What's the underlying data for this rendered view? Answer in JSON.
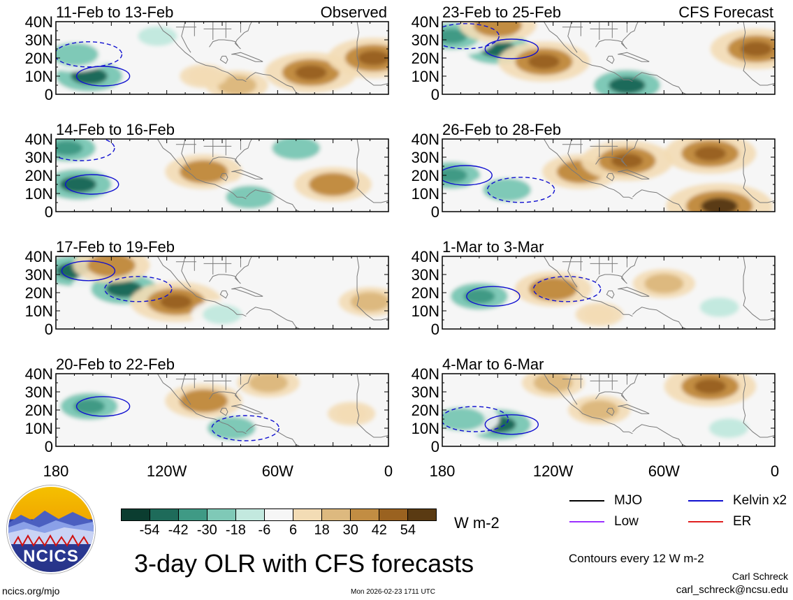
{
  "chart_data": [
    {
      "type": "map",
      "title": "11-Feb to 13-Feb",
      "subtitle": "Observed",
      "x_range_deg_west": [
        180,
        0
      ],
      "y_range_deg_north": [
        0,
        40
      ],
      "olr_anomalies": [
        {
          "lon_w": 162,
          "lat_n": 10,
          "value": -54
        },
        {
          "lon_w": 170,
          "lat_n": 22,
          "value": -30
        },
        {
          "lon_w": 125,
          "lat_n": 32,
          "value": -18
        },
        {
          "lon_w": 42,
          "lat_n": 12,
          "value": 42
        },
        {
          "lon_w": 8,
          "lat_n": 20,
          "value": 42
        },
        {
          "lon_w": 82,
          "lat_n": 5,
          "value": 18
        },
        {
          "lon_w": 100,
          "lat_n": 10,
          "value": 6
        }
      ]
    },
    {
      "type": "map",
      "title": "14-Feb to 16-Feb",
      "subtitle": "",
      "x_range_deg_west": [
        180,
        0
      ],
      "y_range_deg_north": [
        0,
        40
      ],
      "olr_anomalies": [
        {
          "lon_w": 168,
          "lat_n": 15,
          "value": -54
        },
        {
          "lon_w": 174,
          "lat_n": 35,
          "value": -42
        },
        {
          "lon_w": 50,
          "lat_n": 35,
          "value": -30
        },
        {
          "lon_w": 100,
          "lat_n": 22,
          "value": 30
        },
        {
          "lon_w": 75,
          "lat_n": 8,
          "value": -30
        },
        {
          "lon_w": 30,
          "lat_n": 15,
          "value": 30
        }
      ]
    },
    {
      "type": "map",
      "title": "17-Feb to 19-Feb",
      "subtitle": "",
      "x_range_deg_west": [
        180,
        0
      ],
      "y_range_deg_north": [
        0,
        40
      ],
      "olr_anomalies": [
        {
          "lon_w": 170,
          "lat_n": 32,
          "value": -54
        },
        {
          "lon_w": 143,
          "lat_n": 22,
          "value": -54
        },
        {
          "lon_w": 115,
          "lat_n": 15,
          "value": 42
        },
        {
          "lon_w": 150,
          "lat_n": 35,
          "value": 30
        },
        {
          "lon_w": 90,
          "lat_n": 8,
          "value": -18
        },
        {
          "lon_w": 10,
          "lat_n": 15,
          "value": 18
        }
      ]
    },
    {
      "type": "map",
      "title": "20-Feb to 22-Feb",
      "subtitle": "",
      "x_range_deg_west": [
        180,
        0
      ],
      "y_range_deg_north": [
        0,
        40
      ],
      "olr_anomalies": [
        {
          "lon_w": 162,
          "lat_n": 22,
          "value": -42
        },
        {
          "lon_w": 85,
          "lat_n": 10,
          "value": -30
        },
        {
          "lon_w": 65,
          "lat_n": 35,
          "value": 18
        },
        {
          "lon_w": 100,
          "lat_n": 25,
          "value": 30
        },
        {
          "lon_w": 20,
          "lat_n": 18,
          "value": 6
        }
      ]
    },
    {
      "type": "map",
      "title": "23-Feb to 25-Feb",
      "subtitle": "CFS Forecast",
      "x_range_deg_west": [
        180,
        0
      ],
      "y_range_deg_north": [
        0,
        40
      ],
      "olr_anomalies": [
        {
          "lon_w": 150,
          "lat_n": 25,
          "value": -54
        },
        {
          "lon_w": 175,
          "lat_n": 32,
          "value": -42
        },
        {
          "lon_w": 80,
          "lat_n": 5,
          "value": -54
        },
        {
          "lon_w": 125,
          "lat_n": 18,
          "value": 42
        },
        {
          "lon_w": 10,
          "lat_n": 25,
          "value": 42
        },
        {
          "lon_w": 150,
          "lat_n": 38,
          "value": 30
        }
      ]
    },
    {
      "type": "map",
      "title": "26-Feb to 28-Feb",
      "subtitle": "",
      "x_range_deg_west": [
        180,
        0
      ],
      "y_range_deg_north": [
        0,
        40
      ],
      "olr_anomalies": [
        {
          "lon_w": 175,
          "lat_n": 20,
          "value": -42
        },
        {
          "lon_w": 145,
          "lat_n": 12,
          "value": -30
        },
        {
          "lon_w": 105,
          "lat_n": 22,
          "value": 30
        },
        {
          "lon_w": 80,
          "lat_n": 28,
          "value": 42
        },
        {
          "lon_w": 30,
          "lat_n": 3,
          "value": 54
        },
        {
          "lon_w": 35,
          "lat_n": 32,
          "value": 42
        }
      ]
    },
    {
      "type": "map",
      "title": "1-Mar to 3-Mar",
      "subtitle": "",
      "x_range_deg_west": [
        180,
        0
      ],
      "y_range_deg_north": [
        0,
        40
      ],
      "olr_anomalies": [
        {
          "lon_w": 160,
          "lat_n": 18,
          "value": -42
        },
        {
          "lon_w": 120,
          "lat_n": 22,
          "value": 30
        },
        {
          "lon_w": 60,
          "lat_n": 25,
          "value": 18
        },
        {
          "lon_w": 30,
          "lat_n": 12,
          "value": -18
        },
        {
          "lon_w": 95,
          "lat_n": 8,
          "value": 6
        }
      ]
    },
    {
      "type": "map",
      "title": "4-Mar to 6-Mar",
      "subtitle": "",
      "x_range_deg_west": [
        180,
        0
      ],
      "y_range_deg_north": [
        0,
        40
      ],
      "olr_anomalies": [
        {
          "lon_w": 150,
          "lat_n": 12,
          "value": -54
        },
        {
          "lon_w": 170,
          "lat_n": 15,
          "value": -30
        },
        {
          "lon_w": 95,
          "lat_n": 20,
          "value": 18
        },
        {
          "lon_w": 35,
          "lat_n": 33,
          "value": 42
        },
        {
          "lon_w": 25,
          "lat_n": 10,
          "value": -18
        },
        {
          "lon_w": 120,
          "lat_n": 35,
          "value": 18
        }
      ]
    }
  ],
  "axes": {
    "y_ticks": [
      "40N",
      "30N",
      "20N",
      "10N",
      "0"
    ],
    "x_ticks": [
      "180",
      "120W",
      "60W",
      "0"
    ]
  },
  "colorbar": {
    "levels": [
      -54,
      -42,
      -30,
      -18,
      -6,
      6,
      18,
      30,
      42,
      54
    ],
    "tick_labels": [
      "-54",
      "-42",
      "-30",
      "-18",
      "-6",
      "6",
      "18",
      "30",
      "42",
      "54"
    ],
    "colors": [
      "#0b3d30",
      "#1e6b5a",
      "#3f9a85",
      "#7fc9b7",
      "#c3e9df",
      "#f6f6f6",
      "#f3dcb5",
      "#ddb97f",
      "#c28d43",
      "#9a6220",
      "#5a3a12"
    ],
    "units": "W m-2"
  },
  "legend": [
    {
      "label": "MJO",
      "color": "#000000"
    },
    {
      "label": "Kelvin x2",
      "color": "#1010d0"
    },
    {
      "label": "Low",
      "color": "#9b30ff"
    },
    {
      "label": "ER",
      "color": "#e02020"
    }
  ],
  "contour_note": "Contours every 12 W m-2",
  "main_title": "3-day OLR with CFS forecasts",
  "footer": {
    "site": "ncics.org/mjo",
    "timestamp": "Mon 2026-02-23 1711 UTC",
    "author": "Carl Schreck",
    "email": "carl_schreck@ncsu.edu"
  },
  "logo_text": "NCICS",
  "colors": {
    "land_outline": "#7a7a7a",
    "kelvin_contour": "#1010d0"
  }
}
